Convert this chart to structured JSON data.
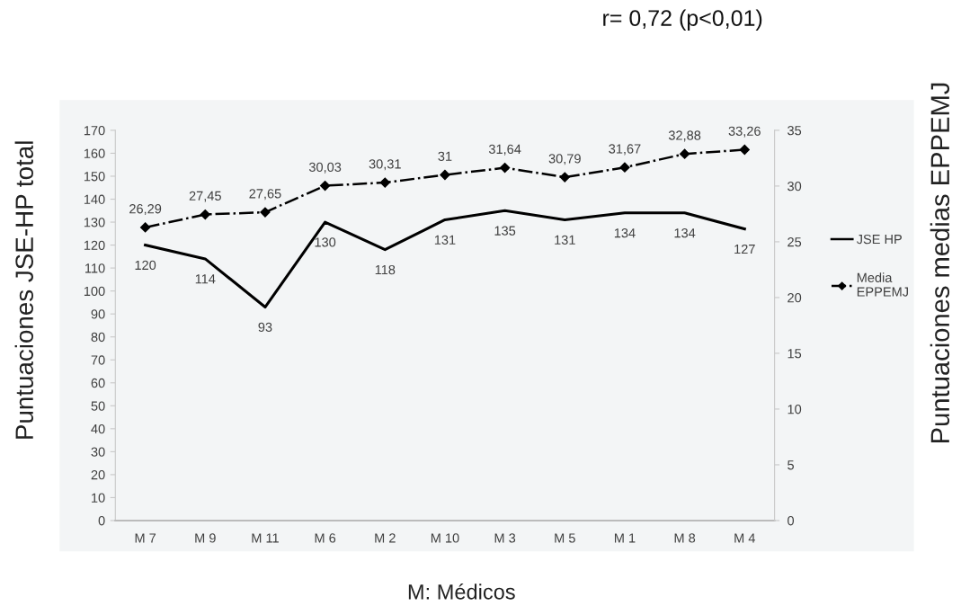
{
  "chart_data": {
    "type": "line",
    "annotations": [
      "r= 0,72 (p<0,01)"
    ],
    "xlabel": "M: Médicos",
    "ylabel": "Puntuaciones JSE-HP total",
    "y2label": "Puntuaciones medias EPPEMJ",
    "categories": [
      "M 7",
      "M 9",
      "M 11",
      "M 6",
      "M 2",
      "M 10",
      "M 3",
      "M 5",
      "M 1",
      "M 8",
      "M 4"
    ],
    "series": [
      {
        "name": "JSE HP",
        "color": "#000000",
        "line_style": "solid",
        "marker": "none",
        "values": [
          120,
          114,
          93,
          130,
          118,
          131,
          135,
          131,
          134,
          134,
          127
        ],
        "value_labels": [
          "120",
          "114",
          "93",
          "130",
          "118",
          "131",
          "135",
          "131",
          "134",
          "134",
          "127"
        ]
      },
      {
        "name": "Media EPPEMJ",
        "color": "#000000",
        "axis": "y2",
        "line_style": "dashdot",
        "marker": "diamond",
        "values": [
          26.29,
          27.45,
          27.65,
          30.03,
          30.31,
          31,
          31.64,
          30.79,
          31.67,
          32.88,
          33.26
        ],
        "value_labels": [
          "26,29",
          "27,45",
          "27,65",
          "30,03",
          "30,31",
          "31",
          "31,64",
          "30,79",
          "31,67",
          "32,88",
          "33,26"
        ]
      }
    ],
    "ylim": [
      0,
      170
    ],
    "yticks": [
      0,
      10,
      20,
      30,
      40,
      50,
      60,
      70,
      80,
      90,
      100,
      110,
      120,
      130,
      140,
      150,
      160,
      170
    ],
    "y2lim": [
      0,
      35
    ],
    "y2ticks": [
      0,
      5,
      10,
      15,
      20,
      25,
      30,
      35
    ],
    "legend": "right",
    "grid": false
  }
}
